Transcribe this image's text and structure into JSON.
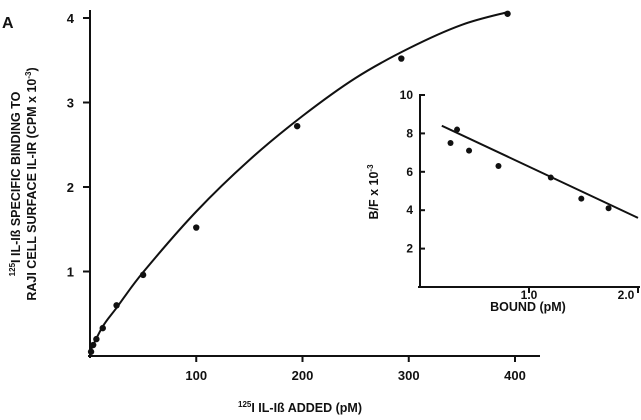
{
  "chart_data": [
    {
      "type": "scatter",
      "panel_label": "A",
      "title": "",
      "xlabel_sup": "125",
      "xlabel": "I IL-Iß ADDED (pM)",
      "ylabel_line1_sup": "125",
      "ylabel_line1": "I IL-Iß SPECIFIC BINDING TO",
      "ylabel_line2": "RAJI CELL SURFACE IL-IR (CPM x 10",
      "ylabel_line2_sup": "-3",
      "ylabel_line2_end": ")",
      "xlim": [
        0,
        400
      ],
      "ylim": [
        0,
        4
      ],
      "xticks": [
        100,
        200,
        300,
        400
      ],
      "xtick_labels": [
        "100",
        "200",
        "300",
        "400"
      ],
      "yticks": [
        1,
        2,
        3,
        4
      ],
      "ytick_labels": [
        "1",
        "2",
        "3",
        "4"
      ],
      "grid": false,
      "series": [
        {
          "x": [
            1,
            3,
            6,
            12,
            25,
            50,
            100,
            195,
            293,
            393
          ],
          "y": [
            0.05,
            0.13,
            0.2,
            0.33,
            0.6,
            0.96,
            1.52,
            2.72,
            3.52,
            4.05
          ]
        }
      ],
      "fit_curve": {
        "x": [
          0,
          12,
          25,
          50,
          100,
          150,
          200,
          250,
          300,
          350,
          393
        ],
        "y": [
          0.05,
          0.35,
          0.57,
          0.99,
          1.71,
          2.32,
          2.84,
          3.29,
          3.64,
          3.92,
          4.07
        ]
      }
    },
    {
      "type": "scatter",
      "title": "",
      "xlabel": "BOUND (pM)",
      "ylabel": "B/F x 10",
      "ylabel_sup": "-3",
      "xlim": [
        0,
        2.0
      ],
      "ylim": [
        0,
        10
      ],
      "xticks": [
        1.0,
        2.0
      ],
      "xtick_labels": [
        "1.0",
        "2.0"
      ],
      "yticks": [
        2,
        4,
        6,
        8,
        10
      ],
      "ytick_labels": [
        "2",
        "4",
        "6",
        "8",
        "10"
      ],
      "grid": false,
      "series": [
        {
          "x": [
            0.28,
            0.34,
            0.45,
            0.72,
            1.2,
            1.48,
            1.73
          ],
          "y": [
            7.5,
            8.2,
            7.1,
            6.3,
            5.7,
            4.6,
            4.1
          ]
        }
      ],
      "regression_line": {
        "x": [
          0.2,
          2.0
        ],
        "y": [
          8.4,
          3.6
        ]
      }
    }
  ]
}
